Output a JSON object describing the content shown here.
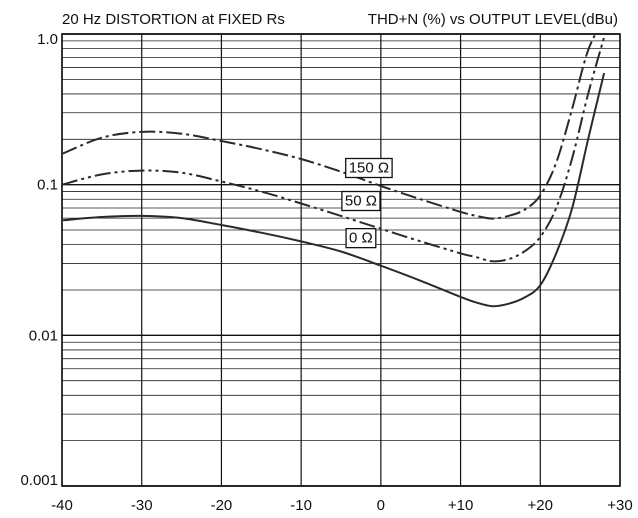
{
  "title_left": "20 Hz DISTORTION at FIXED Rs",
  "title_right": "THD+N (%) vs OUTPUT LEVEL(dBu)",
  "chart_data": {
    "type": "line",
    "title": "20 Hz DISTORTION at FIXED Rs",
    "subtitle": "THD+N (%) vs OUTPUT LEVEL(dBu)",
    "xlabel": "",
    "ylabel": "",
    "xlim": [
      -40,
      30
    ],
    "ylim": [
      0.001,
      1.0
    ],
    "yscale": "log",
    "grid": true,
    "x_ticks": [
      -40,
      -30,
      -20,
      -10,
      0,
      10,
      20,
      30
    ],
    "x_tick_labels": [
      "-40",
      "-30",
      "-20",
      "-10",
      "0",
      "+10",
      "+20",
      "+30"
    ],
    "y_ticks": [
      0.001,
      0.01,
      0.1,
      1.0
    ],
    "y_tick_labels": [
      "0.001",
      "0.01",
      "0.1",
      "1.0"
    ],
    "series": [
      {
        "name": "0 Ω",
        "label_at": [
          -2.5,
          0.0445
        ],
        "dash": "solid",
        "x": [
          -40,
          -35,
          -30,
          -25,
          -20,
          -15,
          -10,
          -5,
          0,
          5,
          10,
          12,
          14,
          16,
          18,
          20,
          22,
          24,
          26,
          28
        ],
        "y": [
          0.058,
          0.061,
          0.062,
          0.06,
          0.054,
          0.048,
          0.042,
          0.036,
          0.029,
          0.023,
          0.018,
          0.0165,
          0.0156,
          0.0162,
          0.0178,
          0.0215,
          0.035,
          0.07,
          0.2,
          0.55
        ]
      },
      {
        "name": "50 Ω",
        "label_at": [
          -2.5,
          0.0785
        ],
        "dash": "dash-dot-dot",
        "x": [
          -40,
          -35,
          -30,
          -25,
          -20,
          -15,
          -10,
          -5,
          0,
          5,
          10,
          12,
          14,
          16,
          18,
          20,
          22,
          24,
          26,
          28
        ],
        "y": [
          0.1,
          0.117,
          0.124,
          0.12,
          0.105,
          0.09,
          0.075,
          0.062,
          0.051,
          0.042,
          0.035,
          0.033,
          0.031,
          0.032,
          0.036,
          0.045,
          0.07,
          0.15,
          0.4,
          0.95
        ]
      },
      {
        "name": "150 Ω",
        "label_at": [
          -1.5,
          0.13
        ],
        "dash": "dash-dot",
        "x": [
          -40,
          -35,
          -30,
          -25,
          -20,
          -15,
          -10,
          -5,
          0,
          5,
          10,
          12,
          14,
          16,
          18,
          20,
          22,
          24,
          26,
          28
        ],
        "y": [
          0.16,
          0.205,
          0.224,
          0.218,
          0.195,
          0.172,
          0.148,
          0.122,
          0.098,
          0.08,
          0.066,
          0.062,
          0.0595,
          0.062,
          0.068,
          0.085,
          0.14,
          0.32,
          0.78,
          1.25
        ]
      }
    ]
  }
}
